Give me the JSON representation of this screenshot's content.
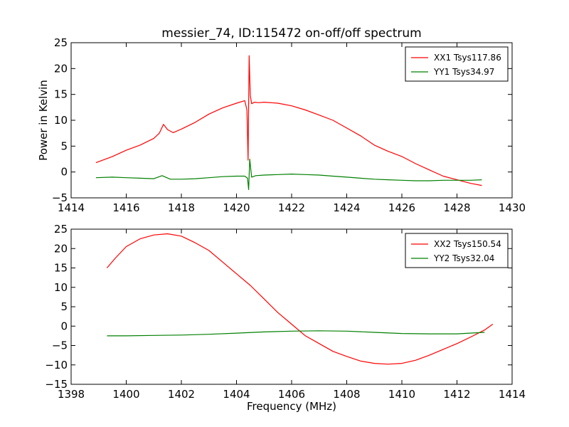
{
  "chart_data": [
    {
      "type": "line",
      "title": "messier_74, ID:115472 on-off/off spectrum",
      "xlabel": "",
      "ylabel": "Power in Kelvin",
      "xlim": [
        1414,
        1430
      ],
      "ylim": [
        -5,
        25
      ],
      "xticks": [
        1414,
        1416,
        1418,
        1420,
        1422,
        1424,
        1426,
        1428,
        1430
      ],
      "yticks": [
        -5,
        0,
        5,
        10,
        15,
        20,
        25
      ],
      "legend": "top-right",
      "series": [
        {
          "name": "XX1 Tsys117.86",
          "color": "#ff0000",
          "x": [
            1414.9,
            1415.5,
            1416.0,
            1416.5,
            1417.0,
            1417.2,
            1417.35,
            1417.5,
            1417.7,
            1418.0,
            1418.5,
            1419.0,
            1419.5,
            1420.0,
            1420.3,
            1420.38,
            1420.42,
            1420.46,
            1420.5,
            1420.55,
            1420.65,
            1420.8,
            1421.0,
            1421.5,
            1422.0,
            1422.5,
            1423.0,
            1423.5,
            1424.0,
            1424.5,
            1425.0,
            1425.5,
            1426.0,
            1426.5,
            1427.0,
            1427.5,
            1428.0,
            1428.5,
            1428.9
          ],
          "y": [
            1.8,
            3.0,
            4.2,
            5.2,
            6.5,
            7.5,
            9.2,
            8.2,
            7.6,
            8.3,
            9.6,
            11.2,
            12.4,
            13.3,
            13.8,
            12.0,
            2.3,
            22.5,
            14.8,
            13.2,
            13.5,
            13.4,
            13.5,
            13.3,
            12.8,
            12.0,
            11.0,
            10.0,
            8.5,
            7.0,
            5.2,
            4.0,
            3.0,
            1.6,
            0.4,
            -0.8,
            -1.5,
            -2.2,
            -2.6
          ]
        },
        {
          "name": "YY1 Tsys34.97",
          "color": "#008000",
          "x": [
            1414.9,
            1415.5,
            1416.0,
            1416.5,
            1417.0,
            1417.3,
            1417.6,
            1418.0,
            1418.5,
            1419.0,
            1419.5,
            1420.0,
            1420.3,
            1420.4,
            1420.44,
            1420.48,
            1420.55,
            1420.7,
            1421.0,
            1421.5,
            1422.0,
            1422.5,
            1423.0,
            1423.5,
            1424.0,
            1424.5,
            1425.0,
            1425.5,
            1426.0,
            1426.5,
            1427.0,
            1427.5,
            1428.0,
            1428.5,
            1428.9
          ],
          "y": [
            -1.1,
            -1.0,
            -1.1,
            -1.2,
            -1.3,
            -0.7,
            -1.4,
            -1.4,
            -1.3,
            -1.1,
            -0.9,
            -0.8,
            -0.8,
            -1.2,
            -3.4,
            2.5,
            -1.0,
            -0.7,
            -0.6,
            -0.5,
            -0.4,
            -0.5,
            -0.6,
            -0.8,
            -1.0,
            -1.2,
            -1.4,
            -1.5,
            -1.6,
            -1.7,
            -1.7,
            -1.6,
            -1.6,
            -1.6,
            -1.5
          ]
        }
      ]
    },
    {
      "type": "line",
      "title": "",
      "xlabel": "Frequency (MHz)",
      "ylabel": "",
      "xlim": [
        1398,
        1414
      ],
      "ylim": [
        -15,
        25
      ],
      "xticks": [
        1398,
        1400,
        1402,
        1404,
        1406,
        1408,
        1410,
        1412,
        1414
      ],
      "yticks": [
        -15,
        -10,
        -5,
        0,
        5,
        10,
        15,
        20,
        25
      ],
      "legend": "top-right",
      "series": [
        {
          "name": "XX2 Tsys150.54",
          "color": "#ff0000",
          "x": [
            1399.3,
            1399.6,
            1400.0,
            1400.5,
            1401.0,
            1401.5,
            1402.0,
            1402.5,
            1403.0,
            1403.5,
            1404.0,
            1404.5,
            1405.0,
            1405.5,
            1406.0,
            1406.5,
            1407.0,
            1407.5,
            1408.0,
            1408.5,
            1409.0,
            1409.5,
            1410.0,
            1410.5,
            1411.0,
            1411.5,
            1412.0,
            1412.5,
            1413.0,
            1413.3
          ],
          "y": [
            15.0,
            17.5,
            20.5,
            22.5,
            23.5,
            23.8,
            23.2,
            21.5,
            19.5,
            16.5,
            13.5,
            10.5,
            7.0,
            3.5,
            0.5,
            -2.5,
            -4.5,
            -6.5,
            -7.8,
            -9.0,
            -9.6,
            -9.8,
            -9.6,
            -8.8,
            -7.5,
            -6.0,
            -4.5,
            -2.8,
            -1.0,
            0.5
          ]
        },
        {
          "name": "YY2 Tsys32.04",
          "color": "#008000",
          "x": [
            1399.3,
            1400.0,
            1401.0,
            1402.0,
            1403.0,
            1404.0,
            1405.0,
            1406.0,
            1407.0,
            1408.0,
            1409.0,
            1410.0,
            1411.0,
            1412.0,
            1413.0
          ],
          "y": [
            -2.5,
            -2.5,
            -2.4,
            -2.3,
            -2.1,
            -1.8,
            -1.5,
            -1.3,
            -1.2,
            -1.3,
            -1.6,
            -1.9,
            -2.0,
            -2.0,
            -1.6
          ]
        }
      ]
    }
  ]
}
